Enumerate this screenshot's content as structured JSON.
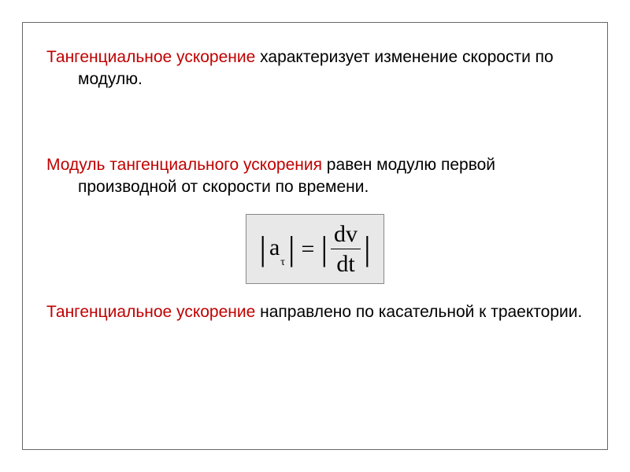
{
  "colors": {
    "term": "#c00000",
    "text": "#000000",
    "frame_border": "#666666",
    "formula_bg": "#e8e8e8",
    "formula_border": "#888888"
  },
  "typography": {
    "body_fontsize": 21,
    "formula_fontsize": 30,
    "body_family": "Arial, sans-serif",
    "formula_family": "Times New Roman, serif"
  },
  "para1": {
    "term": "Тангенциальное ускорение",
    "rest": " характеризует изменение скорости по модулю."
  },
  "para2": {
    "term": "Модуль тангенциального ускорения",
    "rest": " равен модулю первой производной от скорости по времени."
  },
  "formula": {
    "lhs_var": "a",
    "lhs_sub": "τ",
    "eq": "=",
    "rhs_num": "dv",
    "rhs_den": "dt"
  },
  "para3": {
    "term": "Тангенциальное ускорение",
    "rest": " направлено по касательной к траектории."
  }
}
